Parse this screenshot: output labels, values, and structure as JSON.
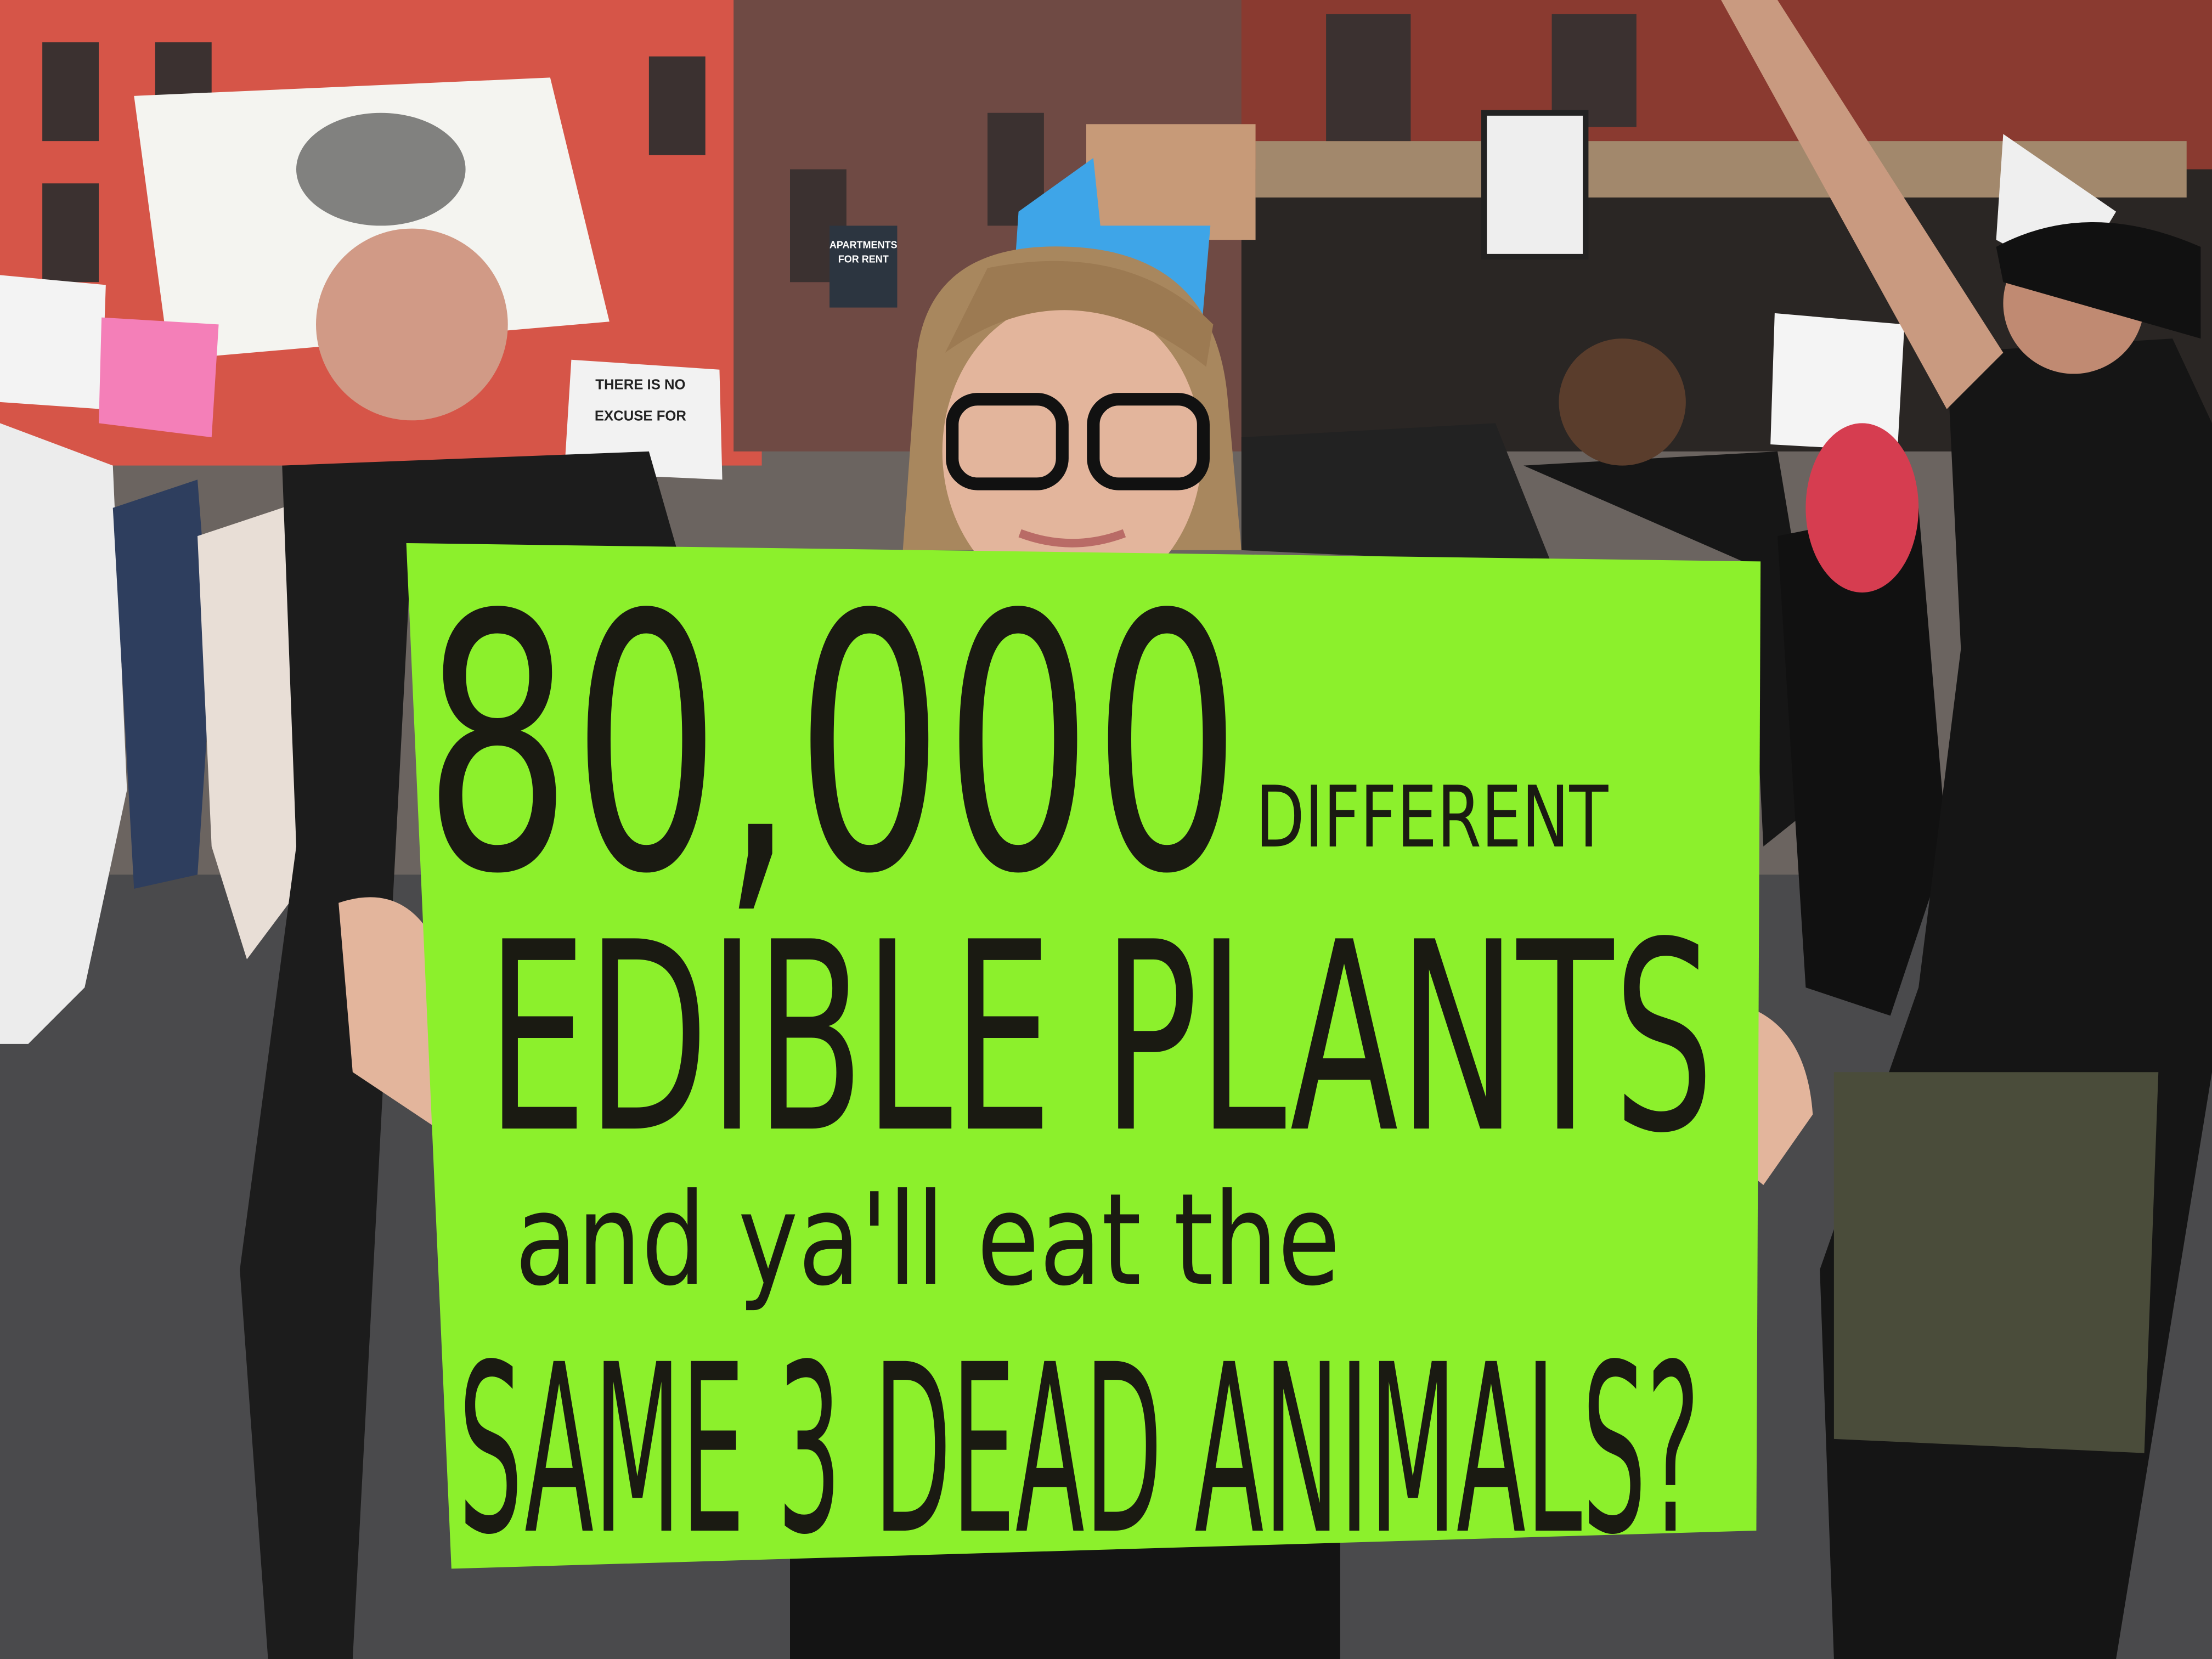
{
  "main_sign": {
    "lines": [
      "80,000",
      "DIFFERENT",
      "EDIBLE PLANTS",
      "and ya'll eat the",
      "SAME 3 DEAD ANIMALS?"
    ]
  },
  "background_signs": [
    {
      "lines": [
        "THERE IS NO",
        "EXCUSE FOR"
      ]
    },
    {
      "lines": [
        "APARTMENTS",
        "FOR RENT"
      ]
    }
  ]
}
